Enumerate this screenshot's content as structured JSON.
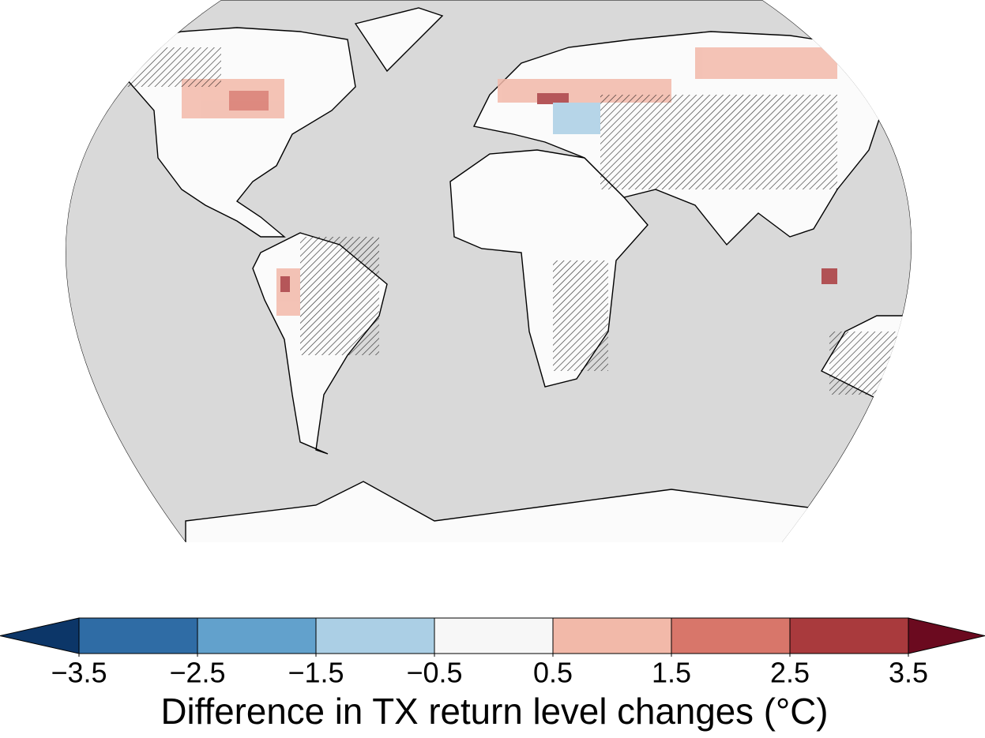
{
  "colorbar": {
    "label": "Difference in TX return level changes (°C)",
    "ticks": [
      {
        "value": -3.5,
        "label": "−3.5"
      },
      {
        "value": -2.5,
        "label": "−2.5"
      },
      {
        "value": -1.5,
        "label": "−1.5"
      },
      {
        "value": -0.5,
        "label": "−0.5"
      },
      0.5,
      1.5,
      2.5,
      3.5
    ],
    "colors": [
      "#2f6ca5",
      "#62a1cc",
      "#abcfe5",
      "#f7f7f7",
      "#f2b9a9",
      "#d8766a",
      "#a93a3d"
    ],
    "under_color": "#0c3668",
    "over_color": "#6b0a1f"
  }
}
